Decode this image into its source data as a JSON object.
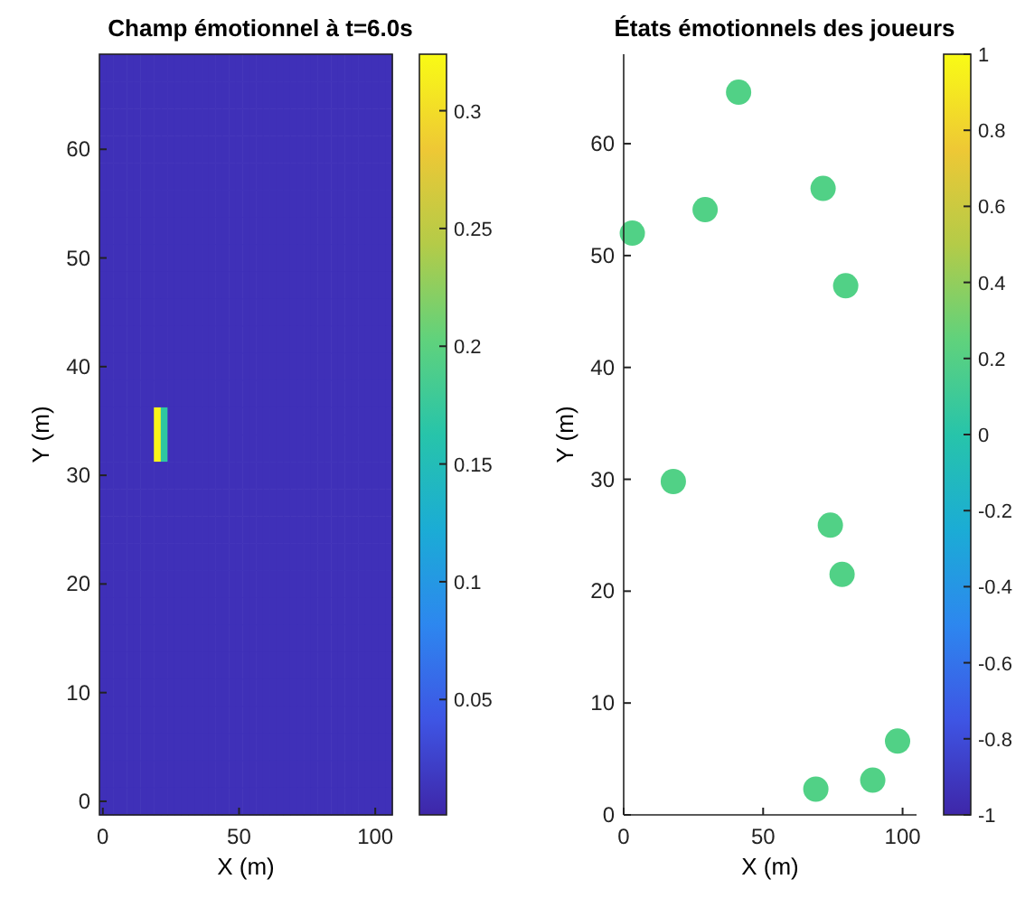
{
  "chart_data": [
    {
      "type": "heatmap",
      "title": "Champ émotionnel à t=6.0s",
      "xlabel": "X (m)",
      "ylabel": "Y (m)",
      "clim": [
        0.001,
        0.324
      ],
      "cticks": [
        0.05,
        0.1,
        0.15,
        0.2,
        0.25,
        0.3
      ],
      "categories": [
        "0",
        null,
        null,
        null,
        null,
        null,
        null,
        null,
        null,
        null,
        null,
        null,
        null,
        null,
        null,
        null,
        null,
        null,
        null,
        null,
        "50",
        null,
        null,
        null,
        null,
        null,
        null,
        null,
        null,
        null,
        null,
        null,
        null,
        null,
        null,
        null,
        null,
        null,
        null,
        null,
        "100",
        null,
        null
      ],
      "y_categories": [
        null,
        null,
        null,
        "60",
        null,
        null,
        null,
        "50",
        null,
        null,
        null,
        "40",
        null,
        null,
        null,
        "30",
        null,
        null,
        null,
        "20",
        null,
        null,
        null,
        "10",
        null,
        null,
        null,
        "0"
      ],
      "cells": [
        [
          0.01,
          0.01,
          0.01,
          0.01,
          0.01,
          0.01,
          0.01,
          0.01,
          0.01,
          0.01,
          0.01,
          0.01,
          0.01,
          0.01,
          0.01,
          0.01,
          0.01,
          0.01,
          0.01,
          0.01,
          0.01,
          0.01,
          0.01,
          0.01,
          0.01,
          0.01,
          0.01,
          0.01,
          0.01,
          0.01,
          0.01,
          0.01,
          0.01,
          0.01,
          0.01,
          0.01,
          0.01,
          0.01,
          0.01,
          0.01,
          0.01,
          0.01,
          0.01
        ],
        [
          0.01,
          0.01,
          0.01,
          0.01,
          0.01,
          0.01,
          0.01,
          0.01,
          0.01,
          0.01,
          0.01,
          0.01,
          0.01,
          0.01,
          0.01,
          0.01,
          0.01,
          0.01,
          0.01,
          0.01,
          0.01,
          0.01,
          0.01,
          0.01,
          0.01,
          0.01,
          0.01,
          0.01,
          0.01,
          0.01,
          0.01,
          0.01,
          0.01,
          0.01,
          0.01,
          0.01,
          0.01,
          0.01,
          0.01,
          0.01,
          0.01,
          0.01,
          0.01
        ],
        [
          0.01,
          0.01,
          0.01,
          0.01,
          0.01,
          0.01,
          0.01,
          0.01,
          0.01,
          0.01,
          0.01,
          0.01,
          0.01,
          0.01,
          0.01,
          0.01,
          0.01,
          0.01,
          0.01,
          0.01,
          0.01,
          0.01,
          0.01,
          0.01,
          0.01,
          0.01,
          0.01,
          0.01,
          0.01,
          0.01,
          0.01,
          0.01,
          0.01,
          0.01,
          0.01,
          0.01,
          0.01,
          0.01,
          0.01,
          0.01,
          0.01,
          0.01,
          0.01
        ],
        [
          0.01,
          0.01,
          0.01,
          0.01,
          0.01,
          0.01,
          0.01,
          0.01,
          0.01,
          0.01,
          0.01,
          0.01,
          0.01,
          0.01,
          0.01,
          0.01,
          0.01,
          0.01,
          0.01,
          0.01,
          0.01,
          0.01,
          0.01,
          0.01,
          0.01,
          0.01,
          0.01,
          0.01,
          0.01,
          0.01,
          0.01,
          0.01,
          0.01,
          0.01,
          0.01,
          0.01,
          0.01,
          0.01,
          0.01,
          0.01,
          0.01,
          0.01,
          0.01
        ],
        [
          0.01,
          0.01,
          0.01,
          0.01,
          0.01,
          0.01,
          0.01,
          0.01,
          0.01,
          0.01,
          0.01,
          0.01,
          0.01,
          0.01,
          0.01,
          0.01,
          0.01,
          0.01,
          0.01,
          0.01,
          0.01,
          0.01,
          0.01,
          0.01,
          0.01,
          0.01,
          0.01,
          0.01,
          0.01,
          0.01,
          0.01,
          0.01,
          0.01,
          0.01,
          0.01,
          0.01,
          0.01,
          0.01,
          0.01,
          0.01,
          0.01,
          0.01,
          0.01
        ],
        [
          0.01,
          0.01,
          0.01,
          0.01,
          0.01,
          0.01,
          0.01,
          0.01,
          0.01,
          0.01,
          0.01,
          0.01,
          0.01,
          0.01,
          0.01,
          0.01,
          0.01,
          0.01,
          0.01,
          0.01,
          0.01,
          0.01,
          0.01,
          0.01,
          0.01,
          0.01,
          0.01,
          0.01,
          0.01,
          0.01,
          0.01,
          0.01,
          0.01,
          0.01,
          0.01,
          0.01,
          0.01,
          0.01,
          0.01,
          0.01,
          0.01,
          0.01,
          0.01
        ],
        [
          0.01,
          0.01,
          0.01,
          0.01,
          0.01,
          0.01,
          0.01,
          0.01,
          0.01,
          0.01,
          0.01,
          0.01,
          0.01,
          0.01,
          0.01,
          0.01,
          0.01,
          0.01,
          0.01,
          0.01,
          0.01,
          0.01,
          0.01,
          0.01,
          0.01,
          0.01,
          0.01,
          0.01,
          0.01,
          0.01,
          0.01,
          0.01,
          0.01,
          0.01,
          0.01,
          0.01,
          0.01,
          0.01,
          0.01,
          0.01,
          0.01,
          0.01,
          0.01
        ],
        [
          0.01,
          0.01,
          0.01,
          0.01,
          0.01,
          0.01,
          0.01,
          0.01,
          0.01,
          0.01,
          0.01,
          0.01,
          0.01,
          0.01,
          0.01,
          0.01,
          0.01,
          0.01,
          0.01,
          0.01,
          0.01,
          0.01,
          0.01,
          0.01,
          0.01,
          0.01,
          0.01,
          0.01,
          0.01,
          0.01,
          0.01,
          0.01,
          0.01,
          0.01,
          0.01,
          0.01,
          0.01,
          0.01,
          0.01,
          0.01,
          0.01,
          0.01,
          0.01
        ],
        [
          0.01,
          0.01,
          0.01,
          0.01,
          0.01,
          0.01,
          0.01,
          0.01,
          0.01,
          0.01,
          0.01,
          0.01,
          0.01,
          0.01,
          0.01,
          0.01,
          0.01,
          0.01,
          0.01,
          0.01,
          0.01,
          0.01,
          0.01,
          0.01,
          0.01,
          0.01,
          0.01,
          0.01,
          0.01,
          0.01,
          0.01,
          0.01,
          0.01,
          0.01,
          0.01,
          0.01,
          0.01,
          0.01,
          0.01,
          0.01,
          0.01,
          0.01,
          0.01
        ],
        [
          0.01,
          0.01,
          0.01,
          0.01,
          0.01,
          0.01,
          0.01,
          0.01,
          0.01,
          0.01,
          0.01,
          0.01,
          0.01,
          0.01,
          0.01,
          0.01,
          0.01,
          0.01,
          0.01,
          0.01,
          0.01,
          0.01,
          0.01,
          0.01,
          0.01,
          0.01,
          0.01,
          0.01,
          0.01,
          0.01,
          0.01,
          0.01,
          0.01,
          0.01,
          0.01,
          0.01,
          0.01,
          0.01,
          0.01,
          0.01,
          0.01,
          0.01,
          0.01
        ],
        [
          0.01,
          0.01,
          0.01,
          0.01,
          0.01,
          0.01,
          0.01,
          0.01,
          0.01,
          0.01,
          0.01,
          0.01,
          0.01,
          0.01,
          0.01,
          0.01,
          0.01,
          0.01,
          0.01,
          0.01,
          0.01,
          0.01,
          0.01,
          0.01,
          0.01,
          0.01,
          0.01,
          0.01,
          0.01,
          0.01,
          0.01,
          0.01,
          0.01,
          0.01,
          0.01,
          0.01,
          0.01,
          0.01,
          0.01,
          0.01,
          0.01,
          0.01,
          0.01
        ],
        [
          0.01,
          0.01,
          0.01,
          0.01,
          0.01,
          0.01,
          0.01,
          0.01,
          0.01,
          0.01,
          0.01,
          0.01,
          0.01,
          0.01,
          0.01,
          0.01,
          0.01,
          0.01,
          0.01,
          0.01,
          0.01,
          0.01,
          0.01,
          0.01,
          0.01,
          0.01,
          0.01,
          0.01,
          0.01,
          0.01,
          0.01,
          0.01,
          0.01,
          0.01,
          0.01,
          0.01,
          0.01,
          0.01,
          0.01,
          0.01,
          0.01,
          0.01,
          0.01
        ],
        [
          0.01,
          0.01,
          0.01,
          0.01,
          0.01,
          0.01,
          0.01,
          0.01,
          0.01,
          0.01,
          0.01,
          0.01,
          0.01,
          0.01,
          0.01,
          0.01,
          0.01,
          0.01,
          0.01,
          0.01,
          0.01,
          0.01,
          0.01,
          0.01,
          0.01,
          0.01,
          0.01,
          0.01,
          0.01,
          0.01,
          0.01,
          0.01,
          0.01,
          0.01,
          0.01,
          0.01,
          0.01,
          0.01,
          0.01,
          0.01,
          0.01,
          0.01,
          0.01
        ],
        [
          0.01,
          0.01,
          0.01,
          0.01,
          0.01,
          0.01,
          0.01,
          0.01,
          0.32,
          0.17,
          0.01,
          0.01,
          0.01,
          0.01,
          0.01,
          0.01,
          0.01,
          0.01,
          0.01,
          0.01,
          0.01,
          0.01,
          0.01,
          0.01,
          0.01,
          0.01,
          0.01,
          0.01,
          0.01,
          0.01,
          0.01,
          0.01,
          0.01,
          0.01,
          0.01,
          0.01,
          0.01,
          0.01,
          0.01,
          0.01,
          0.01,
          0.01,
          0.01
        ],
        [
          0.01,
          0.01,
          0.01,
          0.01,
          0.01,
          0.01,
          0.01,
          0.01,
          0.32,
          0.17,
          0.01,
          0.01,
          0.01,
          0.01,
          0.01,
          0.01,
          0.01,
          0.01,
          0.01,
          0.01,
          0.01,
          0.01,
          0.01,
          0.01,
          0.01,
          0.01,
          0.01,
          0.01,
          0.01,
          0.01,
          0.01,
          0.01,
          0.01,
          0.01,
          0.01,
          0.01,
          0.01,
          0.01,
          0.01,
          0.01,
          0.01,
          0.01,
          0.01
        ],
        [
          0.01,
          0.01,
          0.01,
          0.01,
          0.01,
          0.01,
          0.01,
          0.01,
          0.01,
          0.01,
          0.01,
          0.01,
          0.01,
          0.01,
          0.01,
          0.01,
          0.01,
          0.01,
          0.01,
          0.01,
          0.01,
          0.01,
          0.01,
          0.01,
          0.01,
          0.01,
          0.01,
          0.01,
          0.01,
          0.01,
          0.01,
          0.01,
          0.01,
          0.01,
          0.01,
          0.01,
          0.01,
          0.01,
          0.01,
          0.01,
          0.01,
          0.01,
          0.01
        ],
        [
          0.01,
          0.01,
          0.01,
          0.01,
          0.01,
          0.01,
          0.01,
          0.01,
          0.01,
          0.01,
          0.01,
          0.01,
          0.01,
          0.01,
          0.01,
          0.01,
          0.01,
          0.01,
          0.01,
          0.01,
          0.01,
          0.01,
          0.01,
          0.01,
          0.01,
          0.01,
          0.01,
          0.01,
          0.01,
          0.01,
          0.01,
          0.01,
          0.01,
          0.01,
          0.01,
          0.01,
          0.01,
          0.01,
          0.01,
          0.01,
          0.01,
          0.01,
          0.01
        ],
        [
          0.01,
          0.01,
          0.01,
          0.01,
          0.01,
          0.01,
          0.01,
          0.01,
          0.01,
          0.01,
          0.01,
          0.01,
          0.01,
          0.01,
          0.01,
          0.01,
          0.01,
          0.01,
          0.01,
          0.01,
          0.01,
          0.01,
          0.01,
          0.01,
          0.01,
          0.01,
          0.01,
          0.01,
          0.01,
          0.01,
          0.01,
          0.01,
          0.01,
          0.01,
          0.01,
          0.01,
          0.01,
          0.01,
          0.01,
          0.01,
          0.01,
          0.01,
          0.01
        ],
        [
          0.01,
          0.01,
          0.01,
          0.01,
          0.01,
          0.01,
          0.01,
          0.01,
          0.01,
          0.01,
          0.01,
          0.01,
          0.01,
          0.01,
          0.01,
          0.01,
          0.01,
          0.01,
          0.01,
          0.01,
          0.01,
          0.01,
          0.01,
          0.01,
          0.01,
          0.01,
          0.01,
          0.01,
          0.01,
          0.01,
          0.01,
          0.01,
          0.01,
          0.01,
          0.01,
          0.01,
          0.01,
          0.01,
          0.01,
          0.01,
          0.01,
          0.01,
          0.01
        ],
        [
          0.01,
          0.01,
          0.01,
          0.01,
          0.01,
          0.01,
          0.01,
          0.01,
          0.01,
          0.01,
          0.01,
          0.01,
          0.01,
          0.01,
          0.01,
          0.01,
          0.01,
          0.01,
          0.01,
          0.01,
          0.01,
          0.01,
          0.01,
          0.01,
          0.01,
          0.01,
          0.01,
          0.01,
          0.01,
          0.01,
          0.01,
          0.01,
          0.01,
          0.01,
          0.01,
          0.01,
          0.01,
          0.01,
          0.01,
          0.01,
          0.01,
          0.01,
          0.01
        ],
        [
          0.01,
          0.01,
          0.01,
          0.01,
          0.01,
          0.01,
          0.01,
          0.01,
          0.01,
          0.01,
          0.01,
          0.01,
          0.01,
          0.01,
          0.01,
          0.01,
          0.01,
          0.01,
          0.01,
          0.01,
          0.01,
          0.01,
          0.01,
          0.01,
          0.01,
          0.01,
          0.01,
          0.01,
          0.01,
          0.01,
          0.01,
          0.01,
          0.01,
          0.01,
          0.01,
          0.01,
          0.01,
          0.01,
          0.01,
          0.01,
          0.01,
          0.01,
          0.01
        ],
        [
          0.01,
          0.01,
          0.01,
          0.01,
          0.01,
          0.01,
          0.01,
          0.01,
          0.01,
          0.01,
          0.01,
          0.01,
          0.01,
          0.01,
          0.01,
          0.01,
          0.01,
          0.01,
          0.01,
          0.01,
          0.01,
          0.01,
          0.01,
          0.01,
          0.01,
          0.01,
          0.01,
          0.01,
          0.01,
          0.01,
          0.01,
          0.01,
          0.01,
          0.01,
          0.01,
          0.01,
          0.01,
          0.01,
          0.01,
          0.01,
          0.01,
          0.01,
          0.01
        ],
        [
          0.01,
          0.01,
          0.01,
          0.01,
          0.01,
          0.01,
          0.01,
          0.01,
          0.01,
          0.01,
          0.01,
          0.01,
          0.01,
          0.01,
          0.01,
          0.01,
          0.01,
          0.01,
          0.01,
          0.01,
          0.01,
          0.01,
          0.01,
          0.01,
          0.01,
          0.01,
          0.01,
          0.01,
          0.01,
          0.01,
          0.01,
          0.01,
          0.01,
          0.01,
          0.01,
          0.01,
          0.01,
          0.01,
          0.01,
          0.01,
          0.01,
          0.01,
          0.01
        ],
        [
          0.01,
          0.01,
          0.01,
          0.01,
          0.01,
          0.01,
          0.01,
          0.01,
          0.01,
          0.01,
          0.01,
          0.01,
          0.01,
          0.01,
          0.01,
          0.01,
          0.01,
          0.01,
          0.01,
          0.01,
          0.01,
          0.01,
          0.01,
          0.01,
          0.01,
          0.01,
          0.01,
          0.01,
          0.01,
          0.01,
          0.01,
          0.01,
          0.01,
          0.01,
          0.01,
          0.01,
          0.01,
          0.01,
          0.01,
          0.01,
          0.01,
          0.01,
          0.01
        ],
        [
          0.01,
          0.01,
          0.01,
          0.01,
          0.01,
          0.01,
          0.01,
          0.01,
          0.01,
          0.01,
          0.01,
          0.01,
          0.01,
          0.01,
          0.01,
          0.01,
          0.01,
          0.01,
          0.01,
          0.01,
          0.01,
          0.01,
          0.01,
          0.01,
          0.01,
          0.01,
          0.01,
          0.01,
          0.01,
          0.01,
          0.01,
          0.01,
          0.01,
          0.01,
          0.01,
          0.01,
          0.01,
          0.01,
          0.01,
          0.01,
          0.01,
          0.01,
          0.01
        ],
        [
          0.01,
          0.01,
          0.01,
          0.01,
          0.01,
          0.01,
          0.01,
          0.01,
          0.01,
          0.01,
          0.01,
          0.01,
          0.01,
          0.01,
          0.01,
          0.01,
          0.01,
          0.01,
          0.01,
          0.01,
          0.01,
          0.01,
          0.01,
          0.01,
          0.01,
          0.01,
          0.01,
          0.01,
          0.01,
          0.01,
          0.01,
          0.01,
          0.01,
          0.01,
          0.01,
          0.01,
          0.01,
          0.01,
          0.01,
          0.01,
          0.01,
          0.01,
          0.01
        ],
        [
          0.01,
          0.01,
          0.01,
          0.01,
          0.01,
          0.01,
          0.01,
          0.01,
          0.01,
          0.01,
          0.01,
          0.01,
          0.01,
          0.01,
          0.01,
          0.01,
          0.01,
          0.01,
          0.01,
          0.01,
          0.01,
          0.01,
          0.01,
          0.01,
          0.01,
          0.01,
          0.01,
          0.01,
          0.01,
          0.01,
          0.01,
          0.01,
          0.01,
          0.01,
          0.01,
          0.01,
          0.01,
          0.01,
          0.01,
          0.01,
          0.01,
          0.01,
          0.01
        ],
        [
          0.01,
          0.01,
          0.01,
          0.01,
          0.01,
          0.01,
          0.01,
          0.01,
          0.01,
          0.01,
          0.01,
          0.01,
          0.01,
          0.01,
          0.01,
          0.01,
          0.01,
          0.01,
          0.01,
          0.01,
          0.01,
          0.01,
          0.01,
          0.01,
          0.01,
          0.01,
          0.01,
          0.01,
          0.01,
          0.01,
          0.01,
          0.01,
          0.01,
          0.01,
          0.01,
          0.01,
          0.01,
          0.01,
          0.01,
          0.01,
          0.01,
          0.01,
          0.01
        ]
      ]
    },
    {
      "type": "scatter",
      "title": "États émotionnels des joueurs",
      "xlabel": "X (m)",
      "ylabel": "Y (m)",
      "xlim": [
        0,
        105
      ],
      "ylim": [
        0,
        68
      ],
      "xticks": [
        0,
        50,
        100
      ],
      "yticks": [
        0,
        10,
        20,
        30,
        40,
        50,
        60
      ],
      "marker": "circle",
      "clim": [
        -1,
        1
      ],
      "cticks": [
        -1,
        -0.8,
        -0.6,
        -0.4,
        -0.2,
        0,
        0.2,
        0.4,
        0.6,
        0.8,
        1
      ],
      "series": [
        {
          "x": [
            41.2,
            71.5,
            29.2,
            3.1,
            79.6,
            17.8,
            74.1,
            78.3,
            98.2,
            89.3,
            68.9
          ],
          "values": [
            64.6,
            56.0,
            54.1,
            52.0,
            47.3,
            29.8,
            25.9,
            21.5,
            6.6,
            3.1,
            2.3
          ],
          "cvalues": [
            0.2,
            0.2,
            0.2,
            0.2,
            0.2,
            0.2,
            0.2,
            0.2,
            0.2,
            0.2,
            0.2
          ]
        }
      ]
    }
  ]
}
